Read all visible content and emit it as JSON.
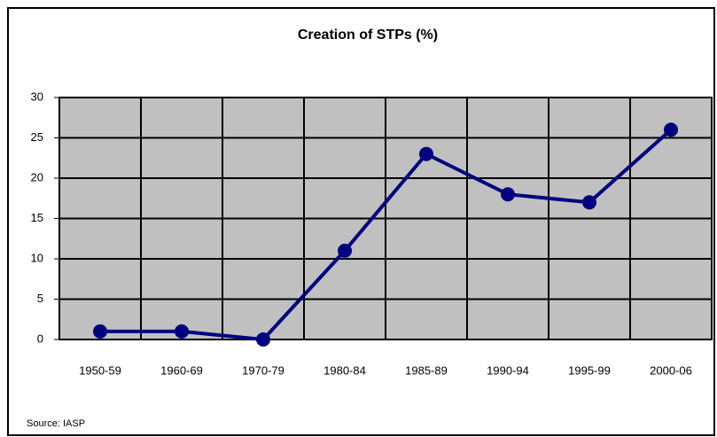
{
  "chart_data": {
    "type": "line",
    "title": "Creation of STPs (%)",
    "categories": [
      "1950-59",
      "1960-69",
      "1970-79",
      "1980-84",
      "1985-89",
      "1990-94",
      "1995-99",
      "2000-06"
    ],
    "values": [
      1,
      1,
      0,
      11,
      23,
      18,
      17,
      26
    ],
    "color": "#000080",
    "ylim": [
      0,
      30
    ],
    "yticks": [
      0,
      5,
      10,
      15,
      20,
      25,
      30
    ],
    "grid": true,
    "source": "Source: IASP"
  }
}
